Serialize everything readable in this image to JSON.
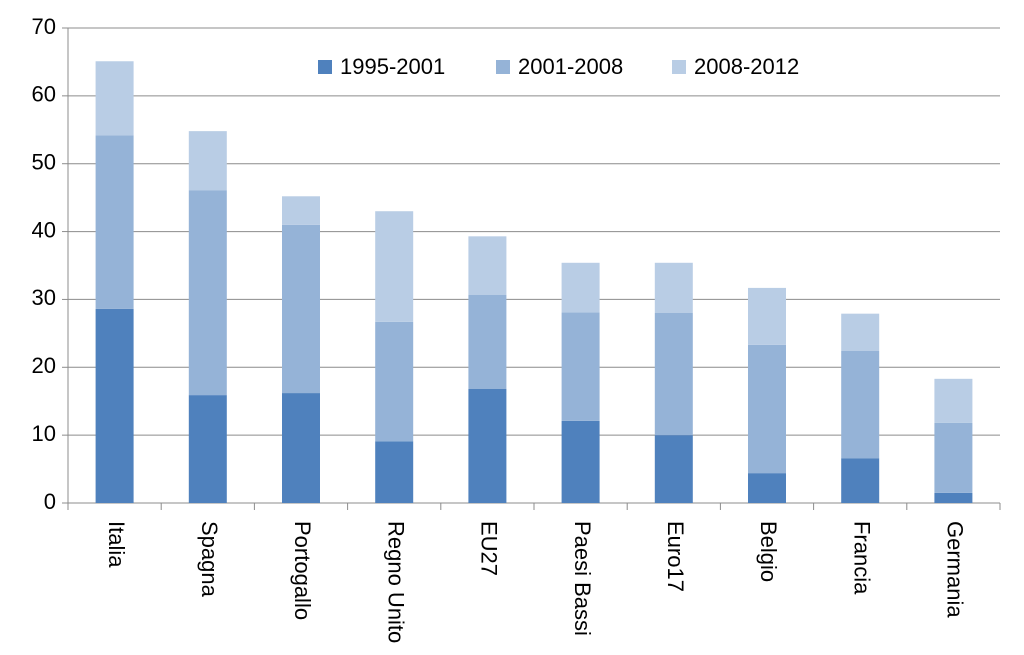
{
  "chart_data": {
    "type": "stacked_bar",
    "categories": [
      "Italia",
      "Spagna",
      "Portogallo",
      "Regno Unito",
      "EU27",
      "Paesi Bassi",
      "Euro17",
      "Belgio",
      "Francia",
      "Germania"
    ],
    "series": [
      {
        "name": "1995-2001",
        "color": "#4f81bd",
        "values": [
          28.6,
          15.9,
          16.2,
          9.1,
          16.8,
          12.1,
          10.0,
          4.4,
          6.6,
          1.5
        ]
      },
      {
        "name": "2001-2008",
        "color": "#95b3d7",
        "values": [
          25.6,
          30.2,
          24.8,
          17.6,
          13.9,
          16.0,
          18.0,
          18.9,
          15.8,
          10.3
        ]
      },
      {
        "name": "2008-2012",
        "color": "#b9cde5",
        "values": [
          10.9,
          8.7,
          4.2,
          16.3,
          8.6,
          7.3,
          7.4,
          8.4,
          5.5,
          6.5
        ]
      }
    ],
    "ylim": [
      0,
      70
    ],
    "yticks": [
      0,
      10,
      20,
      30,
      40,
      50,
      60,
      70
    ],
    "grid": true,
    "legend": "top"
  }
}
